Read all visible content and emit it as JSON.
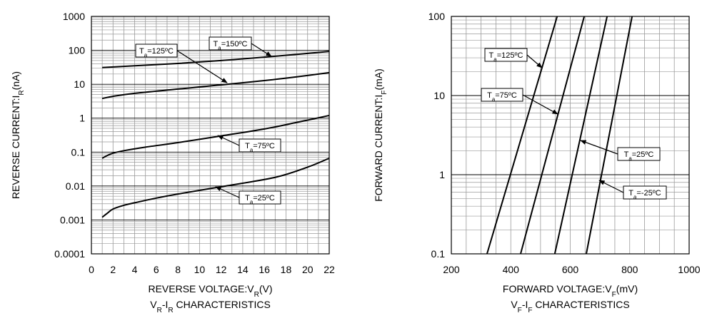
{
  "colors": {
    "grid_minor": "#9a9a9a",
    "grid_major": "#000000",
    "curve": "#000000",
    "background": "#ffffff"
  },
  "chart_data": [
    {
      "type": "line",
      "caption": [
        "V",
        "R",
        "-I",
        "R",
        " CHARACTERISTICS"
      ],
      "xlabel": [
        "REVERSE VOLTAGE:V",
        "R",
        "(V)"
      ],
      "ylabel": [
        "REVERSE CURRENT:I",
        "R",
        "(nA)"
      ],
      "x_scale": "linear",
      "y_scale": "log",
      "xlim": [
        0,
        22
      ],
      "ylim": [
        0.0001,
        1000
      ],
      "x_ticks": [
        "0",
        "2",
        "4",
        "6",
        "8",
        "10",
        "12",
        "14",
        "16",
        "18",
        "20",
        "22"
      ],
      "y_ticks": [
        "0.0001",
        "0.001",
        "0.01",
        "0.1",
        "1",
        "10",
        "100",
        "1000"
      ],
      "grid": true,
      "series": [
        {
          "name": [
            "T",
            "a",
            "=150ºC"
          ],
          "x": [
            1,
            4,
            8,
            12,
            16,
            19,
            22
          ],
          "y": [
            31,
            35,
            41,
            50,
            63,
            76,
            93
          ]
        },
        {
          "name": [
            "T",
            "a",
            "=125ºC"
          ],
          "x": [
            1,
            2,
            4,
            8,
            12,
            16,
            19,
            22
          ],
          "y": [
            3.8,
            4.4,
            5.4,
            7.2,
            9.6,
            12.8,
            16.5,
            22
          ]
        },
        {
          "name": [
            "T",
            "a",
            "=75ºC"
          ],
          "x": [
            1,
            1.5,
            2,
            3,
            5,
            8,
            12,
            16,
            19,
            22
          ],
          "y": [
            0.066,
            0.08,
            0.093,
            0.11,
            0.14,
            0.19,
            0.3,
            0.48,
            0.75,
            1.2
          ]
        },
        {
          "name": [
            "T",
            "a",
            "=25ºC"
          ],
          "x": [
            1,
            1.5,
            2,
            3,
            4,
            6,
            8,
            12,
            17,
            20,
            22
          ],
          "y": [
            0.0012,
            0.0016,
            0.0021,
            0.0027,
            0.0032,
            0.0044,
            0.0058,
            0.0095,
            0.018,
            0.036,
            0.066
          ]
        }
      ]
    },
    {
      "type": "line",
      "caption": [
        "V",
        "F",
        "-I",
        "F",
        " CHARACTERISTICS"
      ],
      "xlabel": [
        "FORWARD VOLTAGE:V",
        "F",
        "(mV)"
      ],
      "ylabel": [
        "FORWARD CURRENT:I",
        "F",
        "(mA)"
      ],
      "x_scale": "linear",
      "y_scale": "log",
      "xlim": [
        200,
        1000
      ],
      "ylim": [
        0.1,
        100
      ],
      "x_ticks": [
        "200",
        "400",
        "600",
        "800",
        "1000"
      ],
      "y_ticks": [
        "0.1",
        "1",
        "10",
        "100"
      ],
      "grid": true,
      "series": [
        {
          "name": [
            "T",
            "a",
            "=125ºC"
          ],
          "x": [
            320,
            556
          ],
          "y": [
            0.1,
            100
          ]
        },
        {
          "name": [
            "T",
            "a",
            "=75ºC"
          ],
          "x": [
            433,
            647
          ],
          "y": [
            0.1,
            100
          ]
        },
        {
          "name": [
            "T",
            "a",
            "=25ºC"
          ],
          "x": [
            548,
            724
          ],
          "y": [
            0.1,
            100
          ]
        },
        {
          "name": [
            "T",
            "a",
            "=-25ºC"
          ],
          "x": [
            654,
            808
          ],
          "y": [
            0.1,
            100
          ]
        }
      ]
    }
  ]
}
